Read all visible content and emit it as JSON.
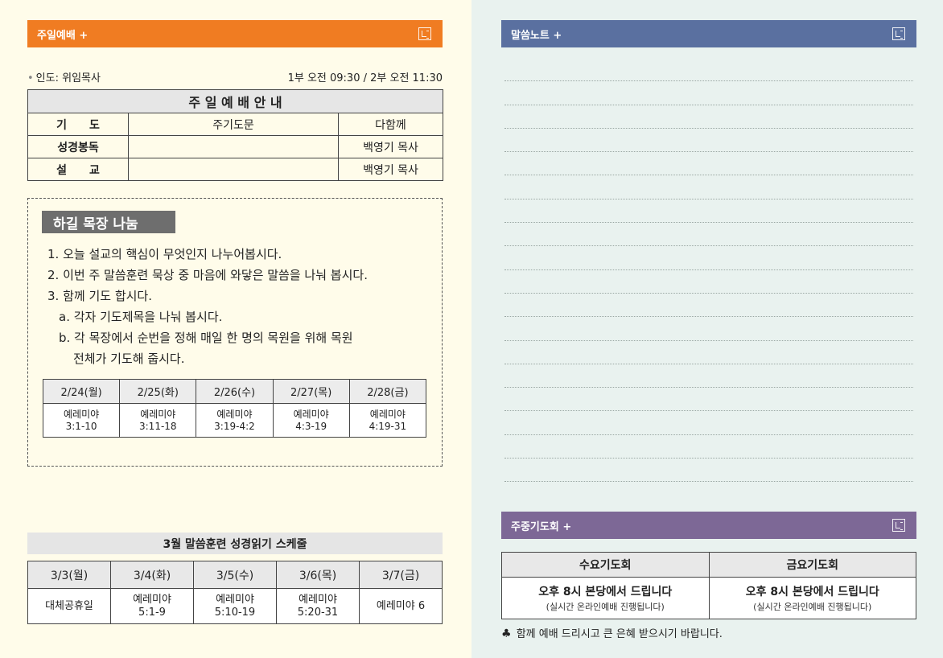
{
  "colors": {
    "orange": "#f07c22",
    "blue": "#5a70a0",
    "purple": "#7d6896"
  },
  "worship": {
    "header": "주일예배 +",
    "leader": "인도: 위임목사",
    "time": "1부 오전 09:30 / 2부 오전 11:30",
    "table_title": "주 일 예 배 안 내",
    "rows": [
      {
        "h": "기　　도",
        "c": "주기도문",
        "p": "다함께"
      },
      {
        "h": "성경봉독",
        "c": "",
        "p": "백영기 목사"
      },
      {
        "h": "설　　교",
        "c": "",
        "p": "백영기 목사"
      }
    ]
  },
  "share": {
    "title": "하길 목장 나눔",
    "items": [
      "1. 오늘 설교의 핵심이 무엇인지 나누어봅시다.",
      "2. 이번 주 말씀훈련 묵상 중 마음에 와닿은 말씀을 나눠 봅시다.",
      "3. 함께 기도 합시다.",
      "a. 각자 기도제목을 나눠 봅시다.",
      "b. 각 목장에서 순번을 정해 매일 한 명의 목원을 위해 목원",
      "전체가 기도해 줍시다."
    ],
    "reading": {
      "days": [
        "2/24(월)",
        "2/25(화)",
        "2/26(수)",
        "2/27(목)",
        "2/28(금)"
      ],
      "book": [
        "예레미야",
        "예레미야",
        "예레미야",
        "예레미야",
        "예레미야"
      ],
      "verses": [
        "3:1-10",
        "3:11-18",
        "3:19-4:2",
        "4:3-19",
        "4:19-31"
      ]
    }
  },
  "schedule": {
    "title": "3월 말씀훈련 성경읽기 스케줄",
    "days": [
      "3/3(월)",
      "3/4(화)",
      "3/5(수)",
      "3/6(목)",
      "3/7(금)"
    ],
    "cells": [
      {
        "a": "대체공휴일",
        "b": ""
      },
      {
        "a": "예레미야",
        "b": "5:1-9"
      },
      {
        "a": "예레미야",
        "b": "5:10-19"
      },
      {
        "a": "예레미야",
        "b": "5:20-31"
      },
      {
        "a": "예레미야 6",
        "b": ""
      }
    ]
  },
  "notes": {
    "header": "말씀노트 +"
  },
  "prayer": {
    "header": "주중기도회 +",
    "cols": [
      {
        "title": "수요기도회",
        "main": "오후 8시 본당에서 드립니다",
        "sub": "(실시간 온라인예배 진행됩니다)"
      },
      {
        "title": "금요기도회",
        "main": "오후 8시 본당에서 드립니다",
        "sub": "(실시간 온라인예배 진행됩니다)"
      }
    ],
    "footer": "함께 예배 드리시고 큰 은혜 받으시기 바랍니다.",
    "footer_symbol": "♣"
  }
}
